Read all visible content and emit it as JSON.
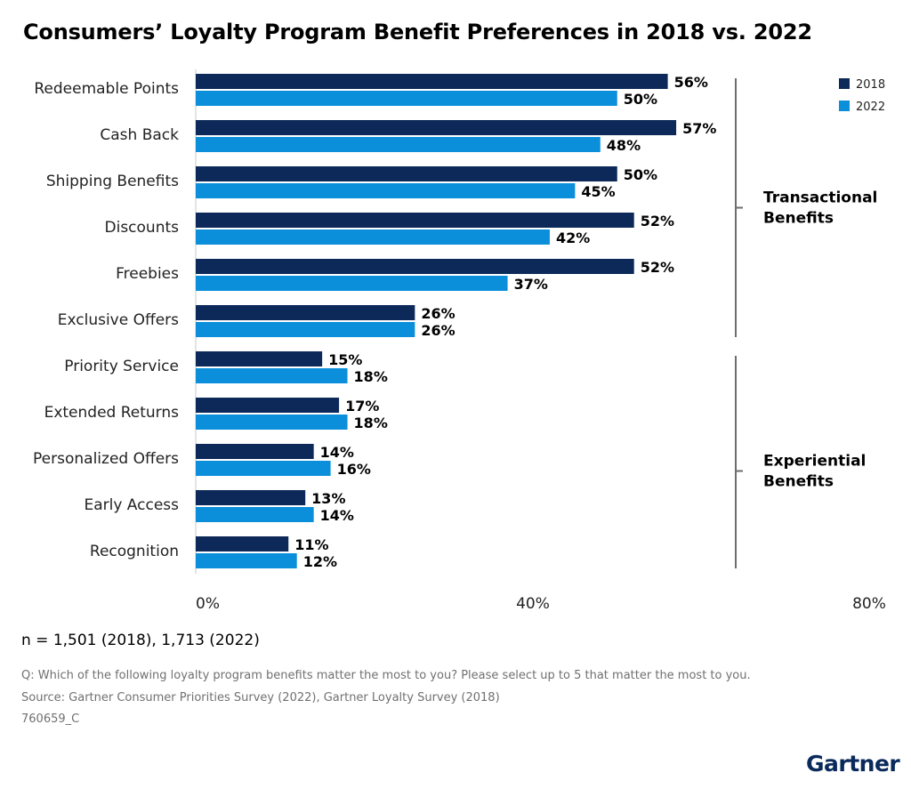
{
  "chart_data": {
    "type": "bar",
    "orientation": "horizontal",
    "title": "Consumers’ Loyalty Program Benefit Preferences in 2018 vs. 2022",
    "categories": [
      "Redeemable Points",
      "Cash Back",
      "Shipping Benefits",
      "Discounts",
      "Freebies",
      "Exclusive Offers",
      "Priority Service",
      "Extended Returns",
      "Personalized Offers",
      "Early Access",
      "Recognition"
    ],
    "series": [
      {
        "name": "2018",
        "color": "#0c2959",
        "values": [
          56,
          57,
          50,
          52,
          52,
          26,
          15,
          17,
          14,
          13,
          11
        ]
      },
      {
        "name": "2022",
        "color": "#0b8fdb",
        "values": [
          50,
          48,
          45,
          42,
          37,
          26,
          18,
          18,
          16,
          14,
          12
        ]
      }
    ],
    "xlim": [
      0,
      80
    ],
    "xticks": [
      "0%",
      "40%",
      "80%"
    ],
    "value_suffix": "%",
    "legend_position": "top-right",
    "groups": [
      {
        "label_lines": [
          "Transactional",
          "Benefits"
        ],
        "from": 0,
        "to": 5
      },
      {
        "label_lines": [
          "Experiential",
          "Benefits"
        ],
        "from": 6,
        "to": 10
      }
    ]
  },
  "footer": {
    "sample": "n = 1,501 (2018), 1,713 (2022)",
    "question": "Q: Which of the following loyalty program benefits matter the most to you? Please select up to 5 that matter the most to you.",
    "source": "Source: Gartner Consumer Priorities Survey (2022), Gartner Loyalty Survey (2018)",
    "code": "760659_C"
  },
  "brand": {
    "logo": "Gartner"
  }
}
